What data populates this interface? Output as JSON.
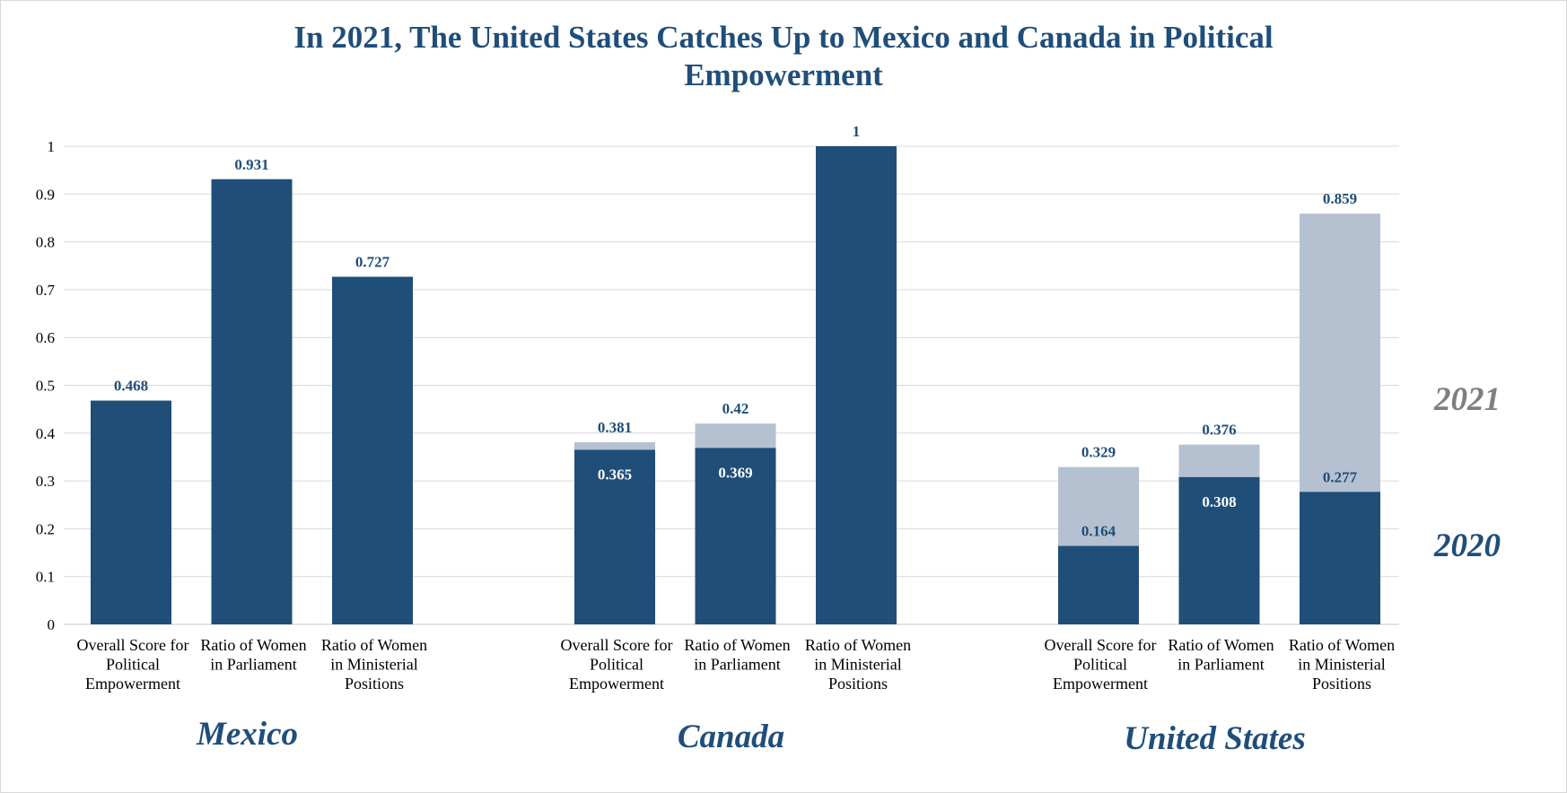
{
  "chart_data": {
    "type": "bar",
    "title": "In 2021, The United States Catches Up to Mexico and Canada in Political Empowerment",
    "title_lines": [
      "In 2021, The United States Catches Up to Mexico and Canada in Political",
      "Empowerment"
    ],
    "ylim": [
      0,
      1
    ],
    "yticks": [
      "0",
      "0.1",
      "0.2",
      "0.3",
      "0.4",
      "0.5",
      "0.6",
      "0.7",
      "0.8",
      "0.9",
      "1"
    ],
    "legend": {
      "year_2021": "2021",
      "year_2020": "2020"
    },
    "colors": {
      "y2020": "#1f4e79",
      "y2021": "#b5c1d1",
      "grid": "#d9d9d9",
      "label_dark": "#1f4e79",
      "label_white": "#ffffff",
      "legend_2021": "#7f7f7f"
    },
    "groups": [
      {
        "country": "Mexico",
        "bars": [
          {
            "category": [
              "Overall Score for",
              "Political",
              "Empowerment"
            ],
            "v2020": 0.468,
            "v2021": null,
            "label_2020": "0.468",
            "label_2021": null
          },
          {
            "category": [
              "Ratio of Women",
              "in Parliament"
            ],
            "v2020": 0.931,
            "v2021": null,
            "label_2020": "0.931",
            "label_2021": null
          },
          {
            "category": [
              "Ratio of Women",
              "in Ministerial",
              "Positions"
            ],
            "v2020": 0.727,
            "v2021": null,
            "label_2020": "0.727",
            "label_2021": null
          }
        ]
      },
      {
        "country": "Canada",
        "bars": [
          {
            "category": [
              "Overall Score for",
              "Political",
              "Empowerment"
            ],
            "v2020": 0.365,
            "v2021": 0.381,
            "label_2020": "0.365",
            "label_2021": "0.381"
          },
          {
            "category": [
              "Ratio of Women",
              "in Parliament"
            ],
            "v2020": 0.369,
            "v2021": 0.42,
            "label_2020": "0.369",
            "label_2021": "0.42"
          },
          {
            "category": [
              "Ratio of Women",
              "in Ministerial",
              "Positions"
            ],
            "v2020": 1,
            "v2021": null,
            "label_2020": "1",
            "label_2021": null
          }
        ]
      },
      {
        "country": "United States",
        "bars": [
          {
            "category": [
              "Overall Score for",
              "Political",
              "Empowerment"
            ],
            "v2020": 0.164,
            "v2021": 0.329,
            "label_2020": "0.164",
            "label_2021": "0.329"
          },
          {
            "category": [
              "Ratio of Women",
              "in Parliament"
            ],
            "v2020": 0.308,
            "v2021": 0.376,
            "label_2020": "0.308",
            "label_2021": "0.376"
          },
          {
            "category": [
              "Ratio of Women",
              "in Ministerial",
              "Positions"
            ],
            "v2020": 0.277,
            "v2021": 0.859,
            "label_2020": "0.277",
            "label_2021": "0.859"
          }
        ]
      }
    ]
  }
}
